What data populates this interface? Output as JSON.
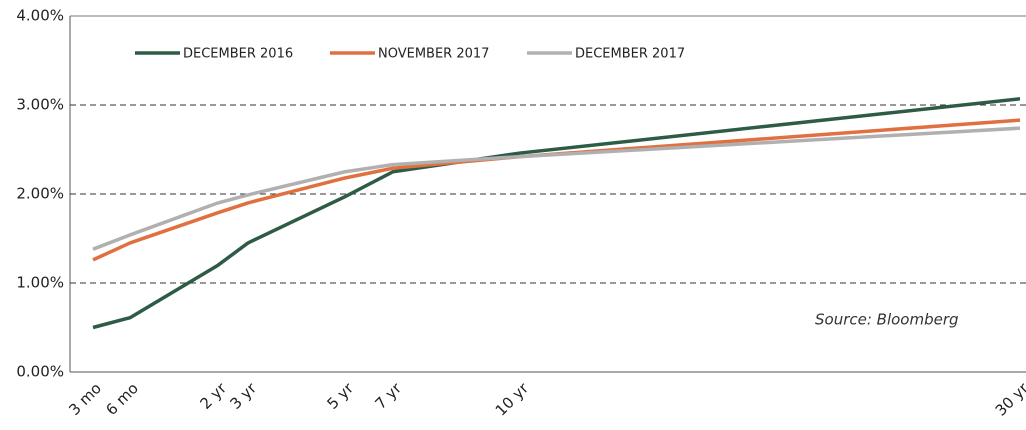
{
  "chart_data": {
    "type": "line",
    "categories": [
      "3 mo",
      "6 mo",
      "2 yr",
      "3 yr",
      "5 yr",
      "7 yr",
      "10 yr",
      "30 yr"
    ],
    "series": [
      {
        "name": "DECEMBER 2016",
        "color": "#2e5b45",
        "values": [
          0.5,
          0.61,
          1.2,
          1.45,
          1.97,
          2.25,
          2.46,
          3.07
        ]
      },
      {
        "name": "NOVEMBER 2017",
        "color": "#e0703f",
        "values": [
          1.26,
          1.45,
          1.79,
          1.9,
          2.18,
          2.29,
          2.42,
          2.83
        ]
      },
      {
        "name": "DECEMBER 2017",
        "color": "#b0b0b0",
        "values": [
          1.38,
          1.54,
          1.9,
          1.99,
          2.25,
          2.33,
          2.42,
          2.74
        ]
      }
    ],
    "ylim": [
      0,
      4
    ],
    "yticks": [
      {
        "value": 0,
        "label": "0.00%"
      },
      {
        "value": 1,
        "label": "1.00%"
      },
      {
        "value": 2,
        "label": "2.00%"
      },
      {
        "value": 3,
        "label": "3.00%"
      },
      {
        "value": 4,
        "label": "4.00%"
      }
    ],
    "grid": true,
    "annotation": "Source: Bloomberg"
  }
}
